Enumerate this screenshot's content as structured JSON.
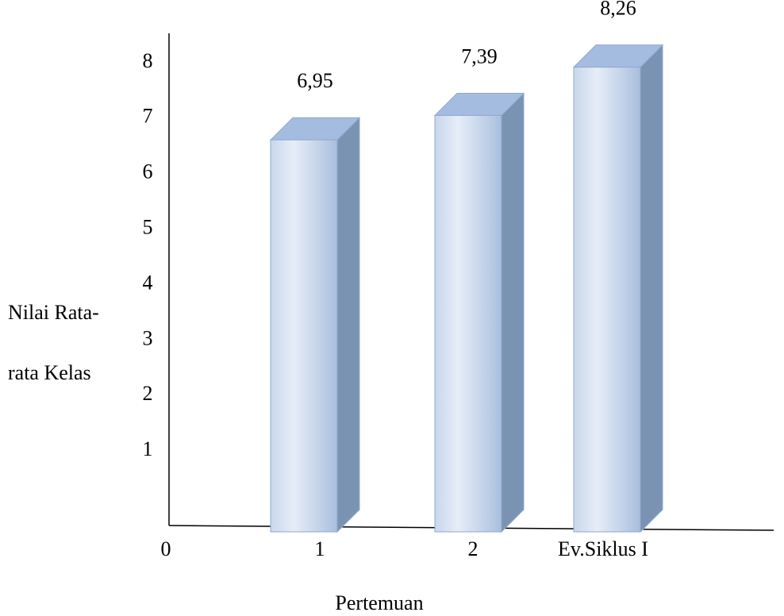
{
  "chart_data": {
    "type": "bar",
    "categories": [
      "1",
      "2",
      "Ev.Siklus I"
    ],
    "values": [
      6.95,
      7.39,
      8.26
    ],
    "value_labels": [
      "6,95",
      "7,39",
      "8,26"
    ],
    "title": "",
    "xlabel": "Pertemuan",
    "ylabel_lines": [
      "Nilai Rata-",
      "rata Kelas"
    ],
    "y_ticks": [
      "1",
      "2",
      "3",
      "4",
      "5",
      "6",
      "7",
      "8"
    ],
    "origin_label": "0",
    "ylim": [
      0,
      8.6
    ],
    "grid": false,
    "legend": "none",
    "bar_style": "3d",
    "colors": {
      "bar_front_light": "#e6edf7",
      "bar_front_dark": "#a9bfde",
      "bar_top": "#a3bcdf",
      "bar_side": "#7b93b3",
      "bar_edge": "#8fa9cf"
    }
  }
}
